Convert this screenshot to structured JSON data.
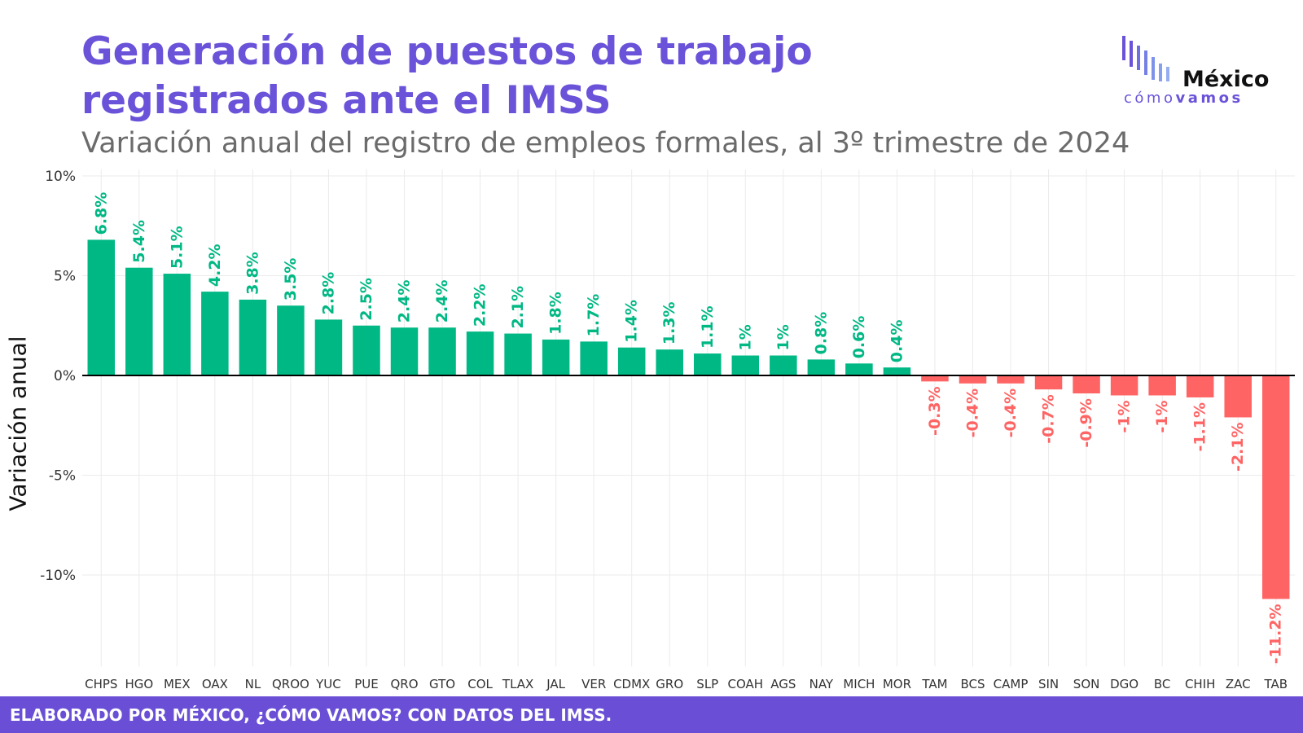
{
  "header": {
    "title_line1": "Generación de puestos de trabajo",
    "title_line2": "registrados ante el IMSS",
    "subtitle": "Variación anual del registro de empleos formales, al 3º trimestre de 2024"
  },
  "logo": {
    "word": "México",
    "tag_light": "cómo",
    "tag_bold": "vamos",
    "icon": "bar-stripes-icon"
  },
  "footer": {
    "text": "ELABORADO POR MÉXICO, ¿CÓMO VAMOS? CON DATOS DEL IMSS."
  },
  "colors": {
    "positive": "#00b884",
    "negative": "#ff6464",
    "brand": "#6a52d9",
    "footer": "#6a4fd6"
  },
  "chart_data": {
    "type": "bar",
    "ylabel": "Variación anual",
    "xlabel": "",
    "ylim": [
      -14.5,
      10
    ],
    "yticks": [
      10,
      5,
      0,
      -5,
      -10
    ],
    "ytick_labels": [
      "10%",
      "5%",
      "0%",
      "-5%",
      "-10%"
    ],
    "grid": true,
    "categories": [
      "CHPS",
      "HGO",
      "MEX",
      "OAX",
      "NL",
      "QROO",
      "YUC",
      "PUE",
      "QRO",
      "GTO",
      "COL",
      "TLAX",
      "JAL",
      "VER",
      "CDMX",
      "GRO",
      "SLP",
      "COAH",
      "AGS",
      "NAY",
      "MICH",
      "MOR",
      "TAM",
      "BCS",
      "CAMP",
      "SIN",
      "SON",
      "DGO",
      "BC",
      "CHIH",
      "ZAC",
      "TAB"
    ],
    "values": [
      6.8,
      5.4,
      5.1,
      4.2,
      3.8,
      3.5,
      2.8,
      2.5,
      2.4,
      2.4,
      2.2,
      2.1,
      1.8,
      1.7,
      1.4,
      1.3,
      1.1,
      1,
      1,
      0.8,
      0.6,
      0.4,
      -0.3,
      -0.4,
      -0.4,
      -0.7,
      -0.9,
      -1,
      -1,
      -1.1,
      -2.1,
      -11.2
    ],
    "labels": [
      "6.8%",
      "5.4%",
      "5.1%",
      "4.2%",
      "3.8%",
      "3.5%",
      "2.8%",
      "2.5%",
      "2.4%",
      "2.4%",
      "2.2%",
      "2.1%",
      "1.8%",
      "1.7%",
      "1.4%",
      "1.3%",
      "1.1%",
      "1%",
      "1%",
      "0.8%",
      "0.6%",
      "0.4%",
      "-0.3%",
      "-0.4%",
      "-0.4%",
      "-0.7%",
      "-0.9%",
      "-1%",
      "-1%",
      "-1.1%",
      "-2.1%",
      "-11.2%"
    ]
  }
}
